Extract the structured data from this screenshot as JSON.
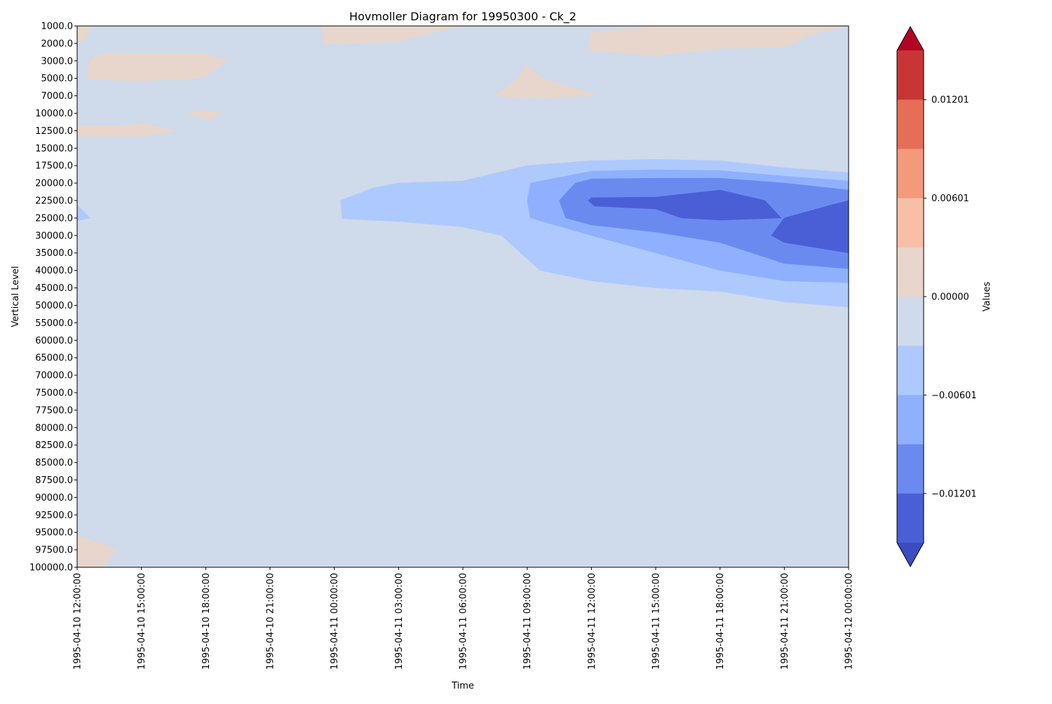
{
  "chart_data": {
    "type": "heatmap",
    "subtype": "filled-contour",
    "title": "Hovmoller Diagram for 19950300 - Ck_2",
    "xlabel": "Time",
    "ylabel": "Vertical Level",
    "colorbar_label": "Values",
    "x_ticks": [
      "1995-04-10 12:00:00",
      "1995-04-10 15:00:00",
      "1995-04-10 18:00:00",
      "1995-04-10 21:00:00",
      "1995-04-11 00:00:00",
      "1995-04-11 03:00:00",
      "1995-04-11 06:00:00",
      "1995-04-11 09:00:00",
      "1995-04-11 12:00:00",
      "1995-04-11 15:00:00",
      "1995-04-11 18:00:00",
      "1995-04-11 21:00:00",
      "1995-04-12 00:00:00"
    ],
    "y_ticks": [
      "1000.0",
      "2000.0",
      "3000.0",
      "5000.0",
      "7000.0",
      "10000.0",
      "12500.0",
      "15000.0",
      "17500.0",
      "20000.0",
      "22500.0",
      "25000.0",
      "30000.0",
      "35000.0",
      "40000.0",
      "45000.0",
      "50000.0",
      "55000.0",
      "60000.0",
      "65000.0",
      "70000.0",
      "75000.0",
      "77500.0",
      "80000.0",
      "82500.0",
      "85000.0",
      "87500.0",
      "90000.0",
      "92500.0",
      "95000.0",
      "97500.0",
      "100000.0"
    ],
    "y_inverted": true,
    "colorbar_ticks": [
      "0.01201",
      "0.00601",
      "0.00000",
      "−0.00601",
      "−0.01201"
    ],
    "colorbar_extend": "both",
    "colormap": "coolwarm",
    "background_level_color": "#cfdaea",
    "levels_colors": [
      "#3b4cc0",
      "#4a5fd6",
      "#6b8af0",
      "#8fb0fe",
      "#aec9fd",
      "#cfdaea",
      "#e8d6cc",
      "#f7bfa6",
      "#f4997a",
      "#e66e56",
      "#c73635",
      "#b40426"
    ],
    "regions": [
      {
        "color": "#e8d6cc",
        "points": [
          [
            0.0,
            1000.0
          ],
          [
            0.0,
            1950.0
          ],
          [
            0.1,
            1850.0
          ],
          [
            0.25,
            1000.0
          ]
        ]
      },
      {
        "color": "#e8d6cc",
        "points": [
          [
            3.8,
            1000.0
          ],
          [
            3.85,
            2050.0
          ],
          [
            5.0,
            1900.0
          ],
          [
            5.5,
            1400.0
          ],
          [
            6.0,
            1000.0
          ]
        ]
      },
      {
        "color": "#e8d6cc",
        "points": [
          [
            8.0,
            1350.0
          ],
          [
            7.95,
            2400.0
          ],
          [
            9.0,
            2700.0
          ],
          [
            10.0,
            2300.0
          ],
          [
            11.0,
            2200.0
          ],
          [
            11.5,
            1400.0
          ],
          [
            12.0,
            1000.0
          ],
          [
            9.0,
            1000.0
          ],
          [
            8.6,
            1200.0
          ]
        ]
      },
      {
        "color": "#e8d6cc",
        "points": [
          [
            0.2,
            2950.0
          ],
          [
            0.35,
            2600.0
          ],
          [
            1.3,
            2600.0
          ],
          [
            2.0,
            2600.0
          ],
          [
            2.35,
            3000.0
          ],
          [
            1.95,
            4950.0
          ],
          [
            1.0,
            5300.0
          ],
          [
            0.15,
            5100.0
          ]
        ]
      },
      {
        "color": "#e8d6cc",
        "points": [
          [
            6.5,
            7000.0
          ],
          [
            6.85,
            5000.0
          ],
          [
            7.0,
            3500.0
          ],
          [
            7.2,
            4900.0
          ],
          [
            8.1,
            7000.0
          ],
          [
            7.0,
            7400.0
          ]
        ]
      },
      {
        "color": "#e8d6cc",
        "points": [
          [
            1.7,
            10000.0
          ],
          [
            2.0,
            9500.0
          ],
          [
            2.25,
            10000.0
          ],
          [
            2.05,
            11000.0
          ]
        ]
      },
      {
        "color": "#e8d6cc",
        "points": [
          [
            0.0,
            11800.0
          ],
          [
            0.7,
            11800.0
          ],
          [
            1.0,
            11500.0
          ],
          [
            1.55,
            12500.0
          ],
          [
            1.0,
            13300.0
          ],
          [
            0.0,
            13300.0
          ]
        ]
      },
      {
        "color": "#e8d6cc",
        "points": [
          [
            0.0,
            95500.0
          ],
          [
            0.35,
            96500.0
          ],
          [
            0.62,
            97500.0
          ],
          [
            0.4,
            100000.0
          ],
          [
            0.0,
            100000.0
          ]
        ]
      },
      {
        "color": "#aec9fd",
        "points": [
          [
            0.0,
            23200.0
          ],
          [
            0.2,
            25000.0
          ],
          [
            0.0,
            25800.0
          ]
        ]
      },
      {
        "color": "#aec9fd",
        "points": [
          [
            4.1,
            22500.0
          ],
          [
            4.6,
            20700.0
          ],
          [
            5.0,
            20000.0
          ],
          [
            6.0,
            19700.0
          ],
          [
            7.0,
            17500.0
          ],
          [
            8.0,
            16800.0
          ],
          [
            9.0,
            16600.0
          ],
          [
            10.0,
            16800.0
          ],
          [
            11.0,
            17800.0
          ],
          [
            12.0,
            18500.0
          ],
          [
            12.0,
            50500.0
          ],
          [
            11.0,
            49000.0
          ],
          [
            10.0,
            46000.0
          ],
          [
            9.0,
            45000.0
          ],
          [
            8.0,
            43000.0
          ],
          [
            7.2,
            40000.0
          ],
          [
            6.6,
            30000.0
          ],
          [
            6.0,
            27500.0
          ],
          [
            5.0,
            26000.0
          ],
          [
            4.12,
            25200.0
          ]
        ]
      },
      {
        "color": "#8fb0fe",
        "points": [
          [
            7.0,
            22500.0
          ],
          [
            7.05,
            20000.0
          ],
          [
            8.0,
            18300.0
          ],
          [
            9.0,
            18100.0
          ],
          [
            10.0,
            18200.0
          ],
          [
            11.0,
            19000.0
          ],
          [
            12.0,
            19700.0
          ],
          [
            12.0,
            43500.0
          ],
          [
            11.0,
            43000.0
          ],
          [
            10.0,
            40000.0
          ],
          [
            9.0,
            35000.0
          ],
          [
            8.0,
            30000.0
          ],
          [
            7.05,
            25000.0
          ]
        ]
      },
      {
        "color": "#6b8af0",
        "points": [
          [
            7.5,
            22500.0
          ],
          [
            7.75,
            20000.0
          ],
          [
            8.0,
            19400.0
          ],
          [
            9.0,
            19300.0
          ],
          [
            10.0,
            19300.0
          ],
          [
            11.0,
            20000.0
          ],
          [
            12.0,
            21000.0
          ],
          [
            12.0,
            39500.0
          ],
          [
            11.0,
            38000.0
          ],
          [
            10.0,
            32000.0
          ],
          [
            9.0,
            29000.0
          ],
          [
            8.0,
            27000.0
          ],
          [
            7.6,
            25000.0
          ]
        ]
      },
      {
        "color": "#4a5fd6",
        "points": [
          [
            7.95,
            22500.0
          ],
          [
            8.0,
            22100.0
          ],
          [
            9.0,
            22000.0
          ],
          [
            10.0,
            21000.0
          ],
          [
            10.7,
            22500.0
          ],
          [
            10.95,
            25000.0
          ],
          [
            10.0,
            25600.0
          ],
          [
            9.4,
            25000.0
          ],
          [
            9.0,
            23700.0
          ],
          [
            8.05,
            23300.0
          ]
        ]
      },
      {
        "color": "#4a5fd6",
        "points": [
          [
            11.0,
            25000.0
          ],
          [
            11.7,
            23200.0
          ],
          [
            12.0,
            22500.0
          ],
          [
            12.0,
            35000.0
          ],
          [
            11.0,
            32000.0
          ],
          [
            10.8,
            30000.0
          ]
        ]
      }
    ]
  }
}
